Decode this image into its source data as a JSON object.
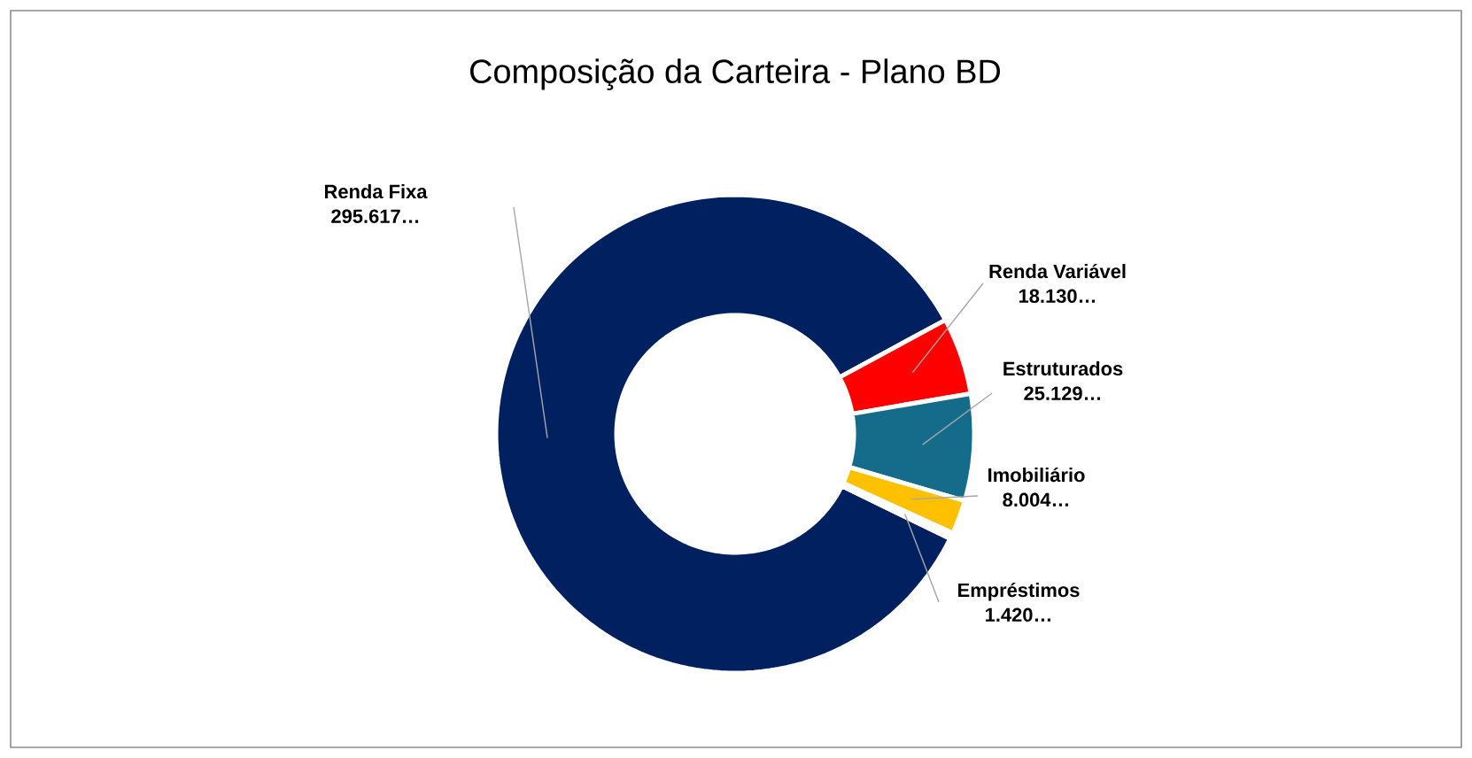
{
  "chart_data": {
    "type": "donut",
    "title": "Composição da Carteira - Plano BD",
    "categories": [
      "Renda Fixa",
      "Renda Variável",
      "Estruturados",
      "Imobiliário",
      "Empréstimos"
    ],
    "values": [
      295617,
      18130,
      25129,
      8004,
      1420
    ],
    "colors": [
      "#002060",
      "#ff0000",
      "#156b8a",
      "#ffc000",
      "#ffffff"
    ],
    "value_labels": [
      "295.617…",
      "18.130…",
      "25.129…",
      "8.004…",
      "1.420…"
    ]
  }
}
